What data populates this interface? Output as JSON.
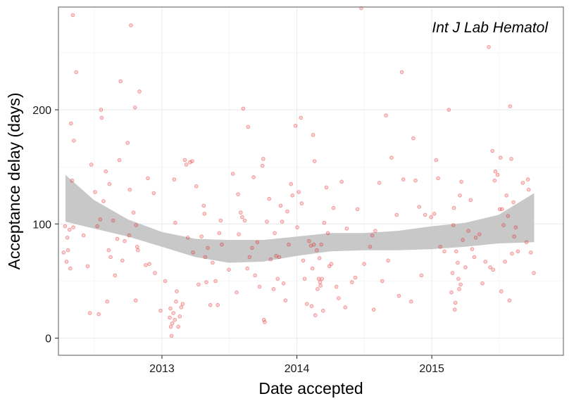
{
  "chart_data": {
    "type": "scatter",
    "title": "",
    "annotation": "Int J Lab Hematol",
    "xlabel": "Date accepted",
    "ylabel": "Acceptance delay (days)",
    "xlim": [
      "2012-03-27",
      "2015-12-23"
    ],
    "ylim": [
      -15,
      290
    ],
    "x_ticks": [
      "2013",
      "2014",
      "2015"
    ],
    "x_tick_dates": [
      "2013-01-01",
      "2014-01-01",
      "2015-01-01"
    ],
    "y_ticks": [
      0,
      100,
      200
    ],
    "grid": true,
    "point_color": "#e41a1c",
    "smooth_band_color": "#c8c8c8",
    "smooth_band": {
      "x": [
        "2012-04-15",
        "2012-07-01",
        "2012-10-01",
        "2013-01-01",
        "2013-04-01",
        "2013-07-01",
        "2013-10-01",
        "2014-01-01",
        "2014-04-01",
        "2014-07-01",
        "2014-10-01",
        "2015-01-01",
        "2015-04-01",
        "2015-07-01",
        "2015-10-05"
      ],
      "upper": [
        143,
        121,
        104,
        93,
        87,
        86,
        86,
        89,
        92,
        92,
        94,
        98,
        101,
        108,
        127
      ],
      "lower": [
        102,
        96,
        89,
        80,
        71,
        66,
        67,
        72,
        76,
        77,
        77,
        78,
        80,
        83,
        84
      ]
    },
    "points": [
      [
        "2012-04-10",
        75
      ],
      [
        "2012-04-14",
        98
      ],
      [
        "2012-04-18",
        67
      ],
      [
        "2012-04-20",
        88
      ],
      [
        "2012-04-22",
        77
      ],
      [
        "2012-04-26",
        95
      ],
      [
        "2012-04-28",
        61
      ],
      [
        "2012-04-30",
        188
      ],
      [
        "2012-05-03",
        138
      ],
      [
        "2012-05-05",
        283
      ],
      [
        "2012-05-06",
        97
      ],
      [
        "2012-05-08",
        173
      ],
      [
        "2012-05-14",
        233
      ],
      [
        "2012-06-03",
        90
      ],
      [
        "2012-06-14",
        63
      ],
      [
        "2012-06-20",
        22
      ],
      [
        "2012-06-24",
        152
      ],
      [
        "2012-07-04",
        128
      ],
      [
        "2012-07-10",
        98
      ],
      [
        "2012-07-14",
        21
      ],
      [
        "2012-07-18",
        104
      ],
      [
        "2012-07-20",
        200
      ],
      [
        "2012-07-22",
        193
      ],
      [
        "2012-07-27",
        120
      ],
      [
        "2012-08-02",
        146
      ],
      [
        "2012-08-06",
        32
      ],
      [
        "2012-08-10",
        77
      ],
      [
        "2012-08-12",
        135
      ],
      [
        "2012-08-15",
        71
      ],
      [
        "2012-08-22",
        103
      ],
      [
        "2012-08-27",
        55
      ],
      [
        "2012-09-02",
        87
      ],
      [
        "2012-09-08",
        156
      ],
      [
        "2012-09-11",
        225
      ],
      [
        "2012-09-16",
        68
      ],
      [
        "2012-09-22",
        85
      ],
      [
        "2012-09-30",
        171
      ],
      [
        "2012-10-04",
        90
      ],
      [
        "2012-10-06",
        130
      ],
      [
        "2012-10-09",
        274
      ],
      [
        "2012-10-16",
        110
      ],
      [
        "2012-10-20",
        202
      ],
      [
        "2012-10-22",
        33
      ],
      [
        "2012-10-23",
        99
      ],
      [
        "2012-10-26",
        80
      ],
      [
        "2012-10-28",
        77
      ],
      [
        "2012-11-01",
        216
      ],
      [
        "2012-11-18",
        64
      ],
      [
        "2012-11-24",
        140
      ],
      [
        "2012-11-28",
        65
      ],
      [
        "2012-12-10",
        127
      ],
      [
        "2012-12-13",
        57
      ],
      [
        "2012-12-28",
        24
      ],
      [
        "2013-01-10",
        50
      ],
      [
        "2013-01-22",
        18
      ],
      [
        "2013-01-24",
        26
      ],
      [
        "2013-01-25",
        10
      ],
      [
        "2013-01-27",
        2
      ],
      [
        "2013-01-29",
        13
      ],
      [
        "2013-02-01",
        22
      ],
      [
        "2013-02-03",
        139
      ],
      [
        "2013-02-05",
        16
      ],
      [
        "2013-02-06",
        101
      ],
      [
        "2013-02-08",
        32
      ],
      [
        "2013-02-10",
        41
      ],
      [
        "2013-02-14",
        10
      ],
      [
        "2013-02-18",
        19
      ],
      [
        "2013-02-22",
        27
      ],
      [
        "2013-02-26",
        30
      ],
      [
        "2013-03-04",
        156
      ],
      [
        "2013-03-08",
        152
      ],
      [
        "2013-03-12",
        88
      ],
      [
        "2013-03-18",
        154
      ],
      [
        "2013-03-24",
        155
      ],
      [
        "2013-03-26",
        75
      ],
      [
        "2013-04-04",
        133
      ],
      [
        "2013-04-10",
        47
      ],
      [
        "2013-04-18",
        89
      ],
      [
        "2013-04-24",
        116
      ],
      [
        "2013-04-26",
        109
      ],
      [
        "2013-04-28",
        71
      ],
      [
        "2013-05-01",
        49
      ],
      [
        "2013-05-05",
        79
      ],
      [
        "2013-05-12",
        29
      ],
      [
        "2013-05-18",
        66
      ],
      [
        "2013-05-26",
        50
      ],
      [
        "2013-06-01",
        29
      ],
      [
        "2013-06-05",
        92
      ],
      [
        "2013-06-09",
        103
      ],
      [
        "2013-06-12",
        82
      ],
      [
        "2013-07-01",
        60
      ],
      [
        "2013-07-12",
        144
      ],
      [
        "2013-07-22",
        40
      ],
      [
        "2013-07-26",
        126
      ],
      [
        "2013-07-28",
        91
      ],
      [
        "2013-08-02",
        110
      ],
      [
        "2013-08-06",
        106
      ],
      [
        "2013-08-09",
        201
      ],
      [
        "2013-08-13",
        103
      ],
      [
        "2013-08-20",
        61
      ],
      [
        "2013-08-22",
        185
      ],
      [
        "2013-08-26",
        71
      ],
      [
        "2013-09-02",
        79
      ],
      [
        "2013-09-06",
        141
      ],
      [
        "2013-09-10",
        55
      ],
      [
        "2013-09-16",
        84
      ],
      [
        "2013-09-22",
        45
      ],
      [
        "2013-09-30",
        151
      ],
      [
        "2013-10-02",
        157
      ],
      [
        "2013-10-04",
        16
      ],
      [
        "2013-10-06",
        14
      ],
      [
        "2013-10-12",
        102
      ],
      [
        "2013-10-18",
        122
      ],
      [
        "2013-10-22",
        69
      ],
      [
        "2013-10-30",
        43
      ],
      [
        "2013-11-02",
        92
      ],
      [
        "2013-11-06",
        72
      ],
      [
        "2013-11-10",
        52
      ],
      [
        "2013-11-14",
        71
      ],
      [
        "2013-11-18",
        116
      ],
      [
        "2013-11-22",
        102
      ],
      [
        "2013-11-26",
        48
      ],
      [
        "2013-12-01",
        33
      ],
      [
        "2013-12-06",
        111
      ],
      [
        "2013-12-10",
        82
      ],
      [
        "2013-12-16",
        135
      ],
      [
        "2013-12-20",
        125
      ],
      [
        "2013-12-28",
        186
      ],
      [
        "2014-01-02",
        97
      ],
      [
        "2014-01-06",
        128
      ],
      [
        "2014-01-12",
        193
      ],
      [
        "2014-01-14",
        118
      ],
      [
        "2014-01-18",
        68
      ],
      [
        "2014-01-22",
        52
      ],
      [
        "2014-01-28",
        30
      ],
      [
        "2014-02-03",
        85
      ],
      [
        "2014-02-08",
        81
      ],
      [
        "2014-02-10",
        28
      ],
      [
        "2014-02-12",
        61
      ],
      [
        "2014-02-14",
        178
      ],
      [
        "2014-02-16",
        82
      ],
      [
        "2014-02-18",
        155
      ],
      [
        "2014-02-20",
        20
      ],
      [
        "2014-02-24",
        77
      ],
      [
        "2014-02-26",
        43
      ],
      [
        "2014-03-01",
        52
      ],
      [
        "2014-03-03",
        70
      ],
      [
        "2014-03-05",
        49
      ],
      [
        "2014-03-06",
        46
      ],
      [
        "2014-03-08",
        82
      ],
      [
        "2014-03-10",
        52
      ],
      [
        "2014-03-13",
        24
      ],
      [
        "2014-03-16",
        101
      ],
      [
        "2014-03-22",
        132
      ],
      [
        "2014-03-26",
        92
      ],
      [
        "2014-03-30",
        63
      ],
      [
        "2014-04-04",
        65
      ],
      [
        "2014-04-10",
        114
      ],
      [
        "2014-04-18",
        45
      ],
      [
        "2014-04-24",
        35
      ],
      [
        "2014-05-02",
        137
      ],
      [
        "2014-05-12",
        27
      ],
      [
        "2014-05-16",
        96
      ],
      [
        "2014-05-30",
        49
      ],
      [
        "2014-06-08",
        53
      ],
      [
        "2014-06-14",
        113
      ],
      [
        "2014-06-24",
        289
      ],
      [
        "2014-07-02",
        65
      ],
      [
        "2014-07-18",
        80
      ],
      [
        "2014-07-24",
        90
      ],
      [
        "2014-07-28",
        25
      ],
      [
        "2014-08-01",
        94
      ],
      [
        "2014-08-12",
        136
      ],
      [
        "2014-08-20",
        50
      ],
      [
        "2014-08-30",
        195
      ],
      [
        "2014-09-05",
        68
      ],
      [
        "2014-09-14",
        158
      ],
      [
        "2014-09-28",
        108
      ],
      [
        "2014-10-04",
        37
      ],
      [
        "2014-10-12",
        233
      ],
      [
        "2014-10-16",
        139
      ],
      [
        "2014-11-06",
        32
      ],
      [
        "2014-11-12",
        175
      ],
      [
        "2014-11-18",
        138
      ],
      [
        "2014-11-28",
        115
      ],
      [
        "2014-12-04",
        55
      ],
      [
        "2014-12-14",
        108
      ],
      [
        "2014-12-30",
        106
      ],
      [
        "2015-01-08",
        109
      ],
      [
        "2015-01-13",
        156
      ],
      [
        "2015-01-18",
        140
      ],
      [
        "2015-01-24",
        80
      ],
      [
        "2015-02-04",
        76
      ],
      [
        "2015-02-16",
        200
      ],
      [
        "2015-02-23",
        40
      ],
      [
        "2015-02-26",
        57
      ],
      [
        "2015-02-28",
        99
      ],
      [
        "2015-03-02",
        114
      ],
      [
        "2015-03-04",
        25
      ],
      [
        "2015-03-06",
        31
      ],
      [
        "2015-03-08",
        76
      ],
      [
        "2015-03-12",
        66
      ],
      [
        "2015-03-14",
        52
      ],
      [
        "2015-03-16",
        43
      ],
      [
        "2015-03-18",
        125
      ],
      [
        "2015-03-20",
        47
      ],
      [
        "2015-03-22",
        137
      ],
      [
        "2015-03-26",
        86
      ],
      [
        "2015-04-02",
        62
      ],
      [
        "2015-04-10",
        94
      ],
      [
        "2015-04-16",
        121
      ],
      [
        "2015-04-20",
        78
      ],
      [
        "2015-04-26",
        71
      ],
      [
        "2015-04-30",
        88
      ],
      [
        "2015-05-10",
        91
      ],
      [
        "2015-05-18",
        48
      ],
      [
        "2015-05-26",
        67
      ],
      [
        "2015-06-04",
        255
      ],
      [
        "2015-06-08",
        62
      ],
      [
        "2015-06-14",
        164
      ],
      [
        "2015-06-16",
        60
      ],
      [
        "2015-06-20",
        138
      ],
      [
        "2015-06-22",
        146
      ],
      [
        "2015-06-28",
        143
      ],
      [
        "2015-07-04",
        113
      ],
      [
        "2015-07-06",
        158
      ],
      [
        "2015-07-08",
        41
      ],
      [
        "2015-07-10",
        113
      ],
      [
        "2015-07-14",
        99
      ],
      [
        "2015-07-18",
        67
      ],
      [
        "2015-07-22",
        125
      ],
      [
        "2015-07-26",
        107
      ],
      [
        "2015-07-30",
        33
      ],
      [
        "2015-08-01",
        203
      ],
      [
        "2015-08-04",
        157
      ],
      [
        "2015-08-06",
        74
      ],
      [
        "2015-08-10",
        119
      ],
      [
        "2015-08-12",
        89
      ],
      [
        "2015-08-16",
        97
      ],
      [
        "2015-08-22",
        76
      ],
      [
        "2015-09-04",
        136
      ],
      [
        "2015-09-14",
        84
      ],
      [
        "2015-09-18",
        139
      ],
      [
        "2015-09-20",
        130
      ],
      [
        "2015-09-26",
        75
      ],
      [
        "2015-10-04",
        57
      ]
    ]
  }
}
